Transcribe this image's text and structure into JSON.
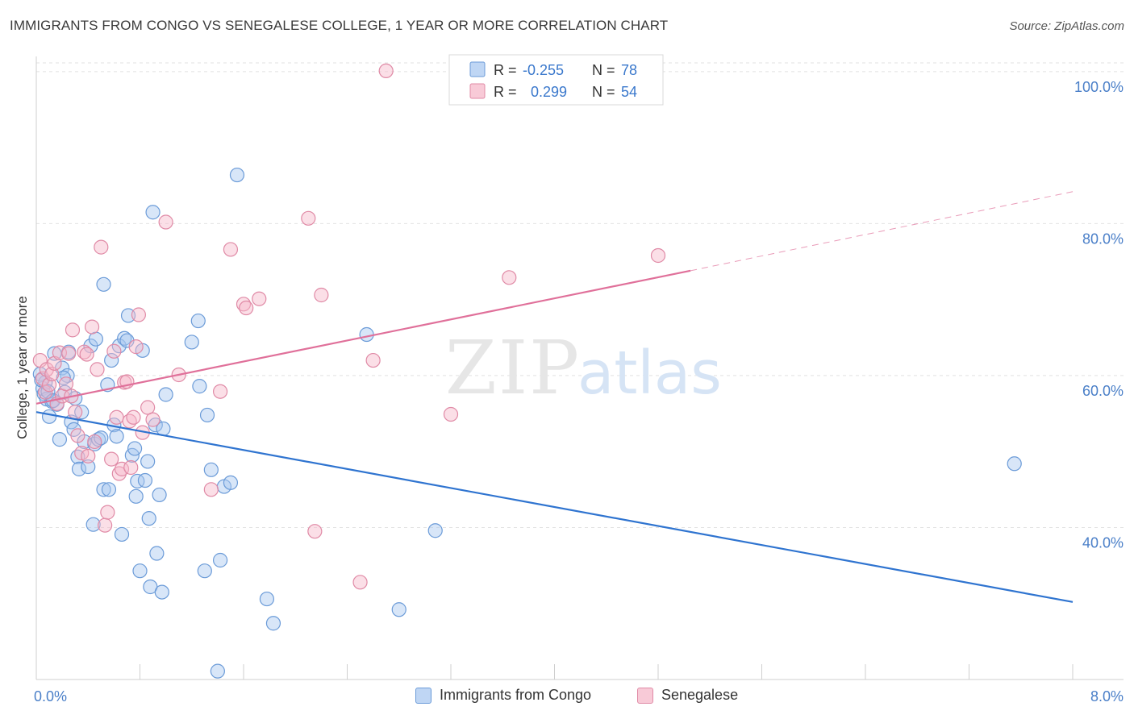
{
  "header": {
    "title": "IMMIGRANTS FROM CONGO VS SENEGALESE COLLEGE, 1 YEAR OR MORE CORRELATION CHART",
    "source": "Source: ZipAtlas.com"
  },
  "watermark": {
    "zip": "ZIP",
    "atlas": "atlas"
  },
  "colors": {
    "blue_fill": "#a9c8f0",
    "blue_stroke": "#6b9bd8",
    "blue_line": "#2f74d0",
    "pink_fill": "#f6b8ca",
    "pink_stroke": "#e08aa6",
    "pink_line": "#e0709a",
    "tick_label": "#4a7fc8"
  },
  "legend": {
    "rows": [
      {
        "r_label": "R =",
        "r_value": "-0.255",
        "n_label": "N =",
        "n_value": "78"
      },
      {
        "r_label": "R =",
        "r_value": "0.299",
        "n_label": "N =",
        "n_value": "54"
      }
    ]
  },
  "bottom_legend": {
    "items": [
      {
        "label": "Immigrants from Congo"
      },
      {
        "label": "Senegalese"
      }
    ]
  },
  "chart_data": {
    "type": "scatter",
    "xlabel": "",
    "ylabel": "College, 1 year or more",
    "xlim": [
      0,
      8
    ],
    "ylim": [
      20,
      102
    ],
    "x_ticks": [
      0,
      0.8,
      1.6,
      2.4,
      3.2,
      4.0,
      4.8,
      5.6,
      6.4,
      7.2,
      8.0
    ],
    "x_tick_labels": [
      {
        "x": 0,
        "label": "0.0%"
      },
      {
        "x": 8,
        "label": "8.0%"
      }
    ],
    "y_tick_labels": [
      {
        "y": 100,
        "label": "100.0%"
      },
      {
        "y": 80,
        "label": "80.0%"
      },
      {
        "y": 60,
        "label": "60.0%"
      },
      {
        "y": 40,
        "label": "40.0%"
      }
    ],
    "grid": true,
    "legend_position": "top-center",
    "series": [
      {
        "name": "Immigrants from Congo",
        "color": "#a9c8f0",
        "trend": {
          "x": [
            0,
            8
          ],
          "y": [
            55.2,
            30.2
          ]
        },
        "points": [
          [
            0.03,
            60.2
          ],
          [
            0.05,
            58.3
          ],
          [
            0.06,
            57.6
          ],
          [
            0.07,
            59.1
          ],
          [
            0.08,
            56.9
          ],
          [
            0.1,
            54.6
          ],
          [
            0.12,
            56.6
          ],
          [
            0.14,
            62.9
          ],
          [
            0.16,
            56.2
          ],
          [
            0.18,
            51.6
          ],
          [
            0.2,
            61.0
          ],
          [
            0.22,
            57.8
          ],
          [
            0.24,
            60.0
          ],
          [
            0.25,
            63.1
          ],
          [
            0.27,
            53.9
          ],
          [
            0.29,
            52.9
          ],
          [
            0.3,
            57.0
          ],
          [
            0.32,
            49.3
          ],
          [
            0.33,
            47.7
          ],
          [
            0.35,
            55.2
          ],
          [
            0.37,
            51.3
          ],
          [
            0.4,
            48.0
          ],
          [
            0.42,
            63.9
          ],
          [
            0.44,
            40.4
          ],
          [
            0.45,
            51.0
          ],
          [
            0.46,
            64.8
          ],
          [
            0.48,
            51.6
          ],
          [
            0.5,
            51.8
          ],
          [
            0.52,
            72.0
          ],
          [
            0.52,
            45.0
          ],
          [
            0.55,
            58.8
          ],
          [
            0.56,
            45.0
          ],
          [
            0.58,
            62.0
          ],
          [
            0.6,
            53.5
          ],
          [
            0.62,
            52.0
          ],
          [
            0.64,
            63.9
          ],
          [
            0.66,
            39.1
          ],
          [
            0.68,
            64.9
          ],
          [
            0.7,
            64.6
          ],
          [
            0.71,
            67.9
          ],
          [
            0.74,
            49.5
          ],
          [
            0.76,
            50.4
          ],
          [
            0.77,
            44.1
          ],
          [
            0.78,
            46.1
          ],
          [
            0.8,
            34.3
          ],
          [
            0.82,
            63.3
          ],
          [
            0.84,
            46.2
          ],
          [
            0.86,
            48.7
          ],
          [
            0.87,
            41.2
          ],
          [
            0.88,
            32.2
          ],
          [
            0.9,
            81.5
          ],
          [
            0.92,
            53.5
          ],
          [
            0.93,
            36.6
          ],
          [
            0.95,
            44.3
          ],
          [
            0.97,
            31.5
          ],
          [
            0.98,
            53.0
          ],
          [
            1.0,
            57.5
          ],
          [
            1.2,
            64.4
          ],
          [
            1.25,
            67.2
          ],
          [
            1.26,
            58.6
          ],
          [
            1.3,
            34.3
          ],
          [
            1.32,
            54.8
          ],
          [
            1.35,
            47.6
          ],
          [
            1.4,
            21.1
          ],
          [
            1.42,
            35.7
          ],
          [
            1.45,
            45.4
          ],
          [
            1.5,
            45.9
          ],
          [
            1.55,
            86.4
          ],
          [
            1.78,
            30.6
          ],
          [
            1.83,
            27.4
          ],
          [
            2.55,
            65.4
          ],
          [
            2.8,
            29.2
          ],
          [
            3.08,
            39.6
          ],
          [
            7.55,
            48.4
          ],
          [
            0.04,
            59.4
          ],
          [
            0.09,
            57.9
          ],
          [
            0.13,
            56.7
          ],
          [
            0.21,
            59.7
          ]
        ]
      },
      {
        "name": "Senegalese",
        "color": "#f6b8ca",
        "trend": {
          "x": [
            0,
            5.05
          ],
          "y": [
            56.3,
            73.8
          ]
        },
        "trend_extension": {
          "x": [
            5.05,
            8
          ],
          "y": [
            73.8,
            84.2
          ]
        },
        "points": [
          [
            0.03,
            62.0
          ],
          [
            0.05,
            59.6
          ],
          [
            0.07,
            57.8
          ],
          [
            0.08,
            60.8
          ],
          [
            0.1,
            58.8
          ],
          [
            0.12,
            60.2
          ],
          [
            0.14,
            61.6
          ],
          [
            0.16,
            56.3
          ],
          [
            0.18,
            63.0
          ],
          [
            0.2,
            57.3
          ],
          [
            0.23,
            58.9
          ],
          [
            0.25,
            62.9
          ],
          [
            0.27,
            57.3
          ],
          [
            0.28,
            66.0
          ],
          [
            0.3,
            55.2
          ],
          [
            0.32,
            52.1
          ],
          [
            0.35,
            49.8
          ],
          [
            0.37,
            63.1
          ],
          [
            0.39,
            62.8
          ],
          [
            0.4,
            49.4
          ],
          [
            0.43,
            66.4
          ],
          [
            0.45,
            51.3
          ],
          [
            0.47,
            60.8
          ],
          [
            0.5,
            76.9
          ],
          [
            0.53,
            40.3
          ],
          [
            0.55,
            42.0
          ],
          [
            0.58,
            49.0
          ],
          [
            0.6,
            63.2
          ],
          [
            0.62,
            54.5
          ],
          [
            0.64,
            47.1
          ],
          [
            0.66,
            47.7
          ],
          [
            0.68,
            59.1
          ],
          [
            0.7,
            59.2
          ],
          [
            0.72,
            54.0
          ],
          [
            0.73,
            47.9
          ],
          [
            0.75,
            54.5
          ],
          [
            0.77,
            63.8
          ],
          [
            0.79,
            68.0
          ],
          [
            0.82,
            52.5
          ],
          [
            0.86,
            55.8
          ],
          [
            0.9,
            54.2
          ],
          [
            1.0,
            80.2
          ],
          [
            1.1,
            60.1
          ],
          [
            1.35,
            45.0
          ],
          [
            1.42,
            57.9
          ],
          [
            1.5,
            76.6
          ],
          [
            1.6,
            69.4
          ],
          [
            1.62,
            68.9
          ],
          [
            1.72,
            70.1
          ],
          [
            2.1,
            80.7
          ],
          [
            2.15,
            39.5
          ],
          [
            2.2,
            70.6
          ],
          [
            2.5,
            32.8
          ],
          [
            2.6,
            62.0
          ]
        ]
      },
      {
        "name": "Senegalese (outliers)",
        "color": "#f6b8ca",
        "points": [
          [
            3.2,
            54.9
          ],
          [
            3.65,
            72.9
          ],
          [
            4.8,
            75.8
          ],
          [
            2.7,
            100.1
          ]
        ]
      }
    ]
  }
}
